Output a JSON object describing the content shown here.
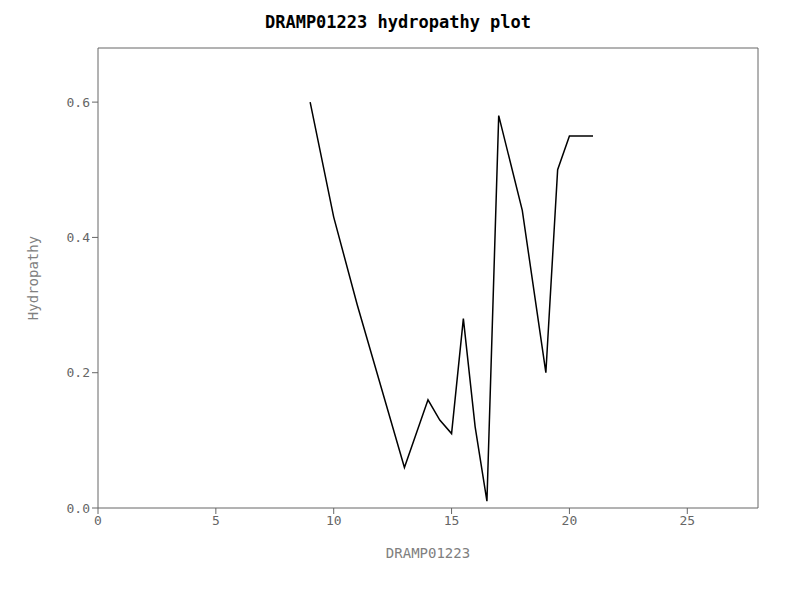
{
  "chart_data": {
    "type": "line",
    "title": "DRAMP01223 hydropathy plot",
    "xlabel": "DRAMP01223",
    "ylabel": "Hydropathy",
    "x": [
      9,
      10,
      11,
      12,
      13,
      14,
      14.5,
      15,
      15.5,
      16,
      16.5,
      17,
      18,
      19,
      19.5,
      20,
      21
    ],
    "values": [
      0.6,
      0.43,
      0.3,
      0.18,
      0.06,
      0.16,
      0.13,
      0.11,
      0.28,
      0.12,
      0.01,
      0.58,
      0.44,
      0.2,
      0.5,
      0.55,
      0.55
    ],
    "color": "#000000",
    "xlim": [
      0,
      28
    ],
    "ylim": [
      0.0,
      0.68
    ],
    "xticks": [
      0,
      5,
      10,
      15,
      20,
      25
    ],
    "yticks": [
      {
        "value": 0,
        "label": "0.0"
      },
      0.2,
      0.4,
      0.6
    ],
    "grid": false
  }
}
